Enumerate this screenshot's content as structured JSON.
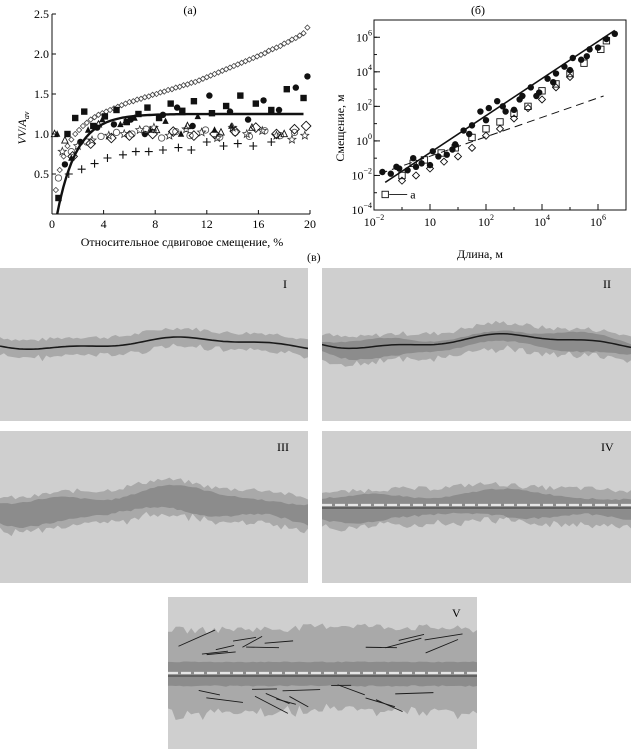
{
  "chart_data": [
    {
      "id": "a",
      "type": "scatter",
      "label": "(а)",
      "xlabel": "Относительное сдвиговое смещение, %",
      "ylabel_main": "VV",
      "ylabel_slash": "/",
      "ylabel_A": "A",
      "ylabel_sub": "av",
      "xlim": [
        0,
        20
      ],
      "ylim": [
        0,
        2.5
      ],
      "xticks": [
        "0",
        "4",
        "8",
        "12",
        "16",
        "20"
      ],
      "yticks": [
        "0.5",
        "1.0",
        "1.5",
        "2.0",
        "2.5"
      ],
      "fit_curve": {
        "name": "fit",
        "asymptote": 1.25,
        "rate": 0.65,
        "x_start": 0.4
      },
      "series": [
        {
          "name": "diamonds_open_small",
          "marker": "diamond-open-small",
          "x": [
            0.3,
            0.6,
            0.9,
            1.2,
            1.5,
            1.8,
            2.1,
            2.4,
            2.7,
            3.0,
            3.3,
            3.6,
            3.9,
            4.2,
            4.5,
            4.8,
            5.1,
            5.4,
            5.7,
            6.0,
            6.3,
            6.6,
            6.9,
            7.2,
            7.5,
            7.8,
            8.1,
            8.4,
            8.7,
            9.0,
            9.3,
            9.6,
            9.9,
            10.2,
            10.5,
            10.8,
            11.1,
            11.4,
            11.7,
            12.0,
            12.3,
            12.6,
            12.9,
            13.2,
            13.5,
            13.8,
            14.1,
            14.4,
            14.7,
            15.0,
            15.3,
            15.6,
            15.9,
            16.2,
            16.5,
            16.8,
            17.1,
            17.4,
            17.7,
            18.0,
            18.3,
            18.6,
            18.9,
            19.2,
            19.5,
            19.8
          ],
          "y": [
            0.3,
            0.55,
            0.72,
            0.85,
            0.93,
            1.0,
            1.05,
            1.1,
            1.14,
            1.18,
            1.21,
            1.24,
            1.26,
            1.28,
            1.3,
            1.32,
            1.34,
            1.36,
            1.38,
            1.4,
            1.41,
            1.43,
            1.44,
            1.46,
            1.47,
            1.49,
            1.5,
            1.52,
            1.53,
            1.55,
            1.56,
            1.58,
            1.59,
            1.61,
            1.62,
            1.64,
            1.65,
            1.67,
            1.69,
            1.71,
            1.73,
            1.75,
            1.77,
            1.79,
            1.81,
            1.83,
            1.85,
            1.87,
            1.89,
            1.91,
            1.93,
            1.95,
            1.97,
            1.99,
            2.01,
            2.04,
            2.06,
            2.08,
            2.1,
            2.13,
            2.15,
            2.18,
            2.2,
            2.23,
            2.26,
            2.33
          ]
        },
        {
          "name": "squares_filled",
          "marker": "square-filled",
          "x": [
            0.5,
            1.2,
            1.8,
            2.5,
            3.2,
            4.1,
            5.0,
            5.8,
            6.7,
            7.4,
            8.3,
            9.2,
            10.1,
            11.0,
            12.4,
            13.5,
            14.6,
            15.8,
            17.0,
            18.2,
            19.5
          ],
          "y": [
            0.2,
            1.0,
            1.2,
            1.28,
            1.1,
            1.22,
            1.3,
            1.15,
            1.25,
            1.33,
            1.2,
            1.38,
            1.29,
            1.41,
            1.26,
            1.35,
            1.48,
            1.38,
            1.3,
            1.56,
            1.45
          ]
        },
        {
          "name": "circles_filled",
          "marker": "circle-filled",
          "x": [
            1.0,
            2.2,
            3.5,
            4.8,
            6.1,
            7.2,
            8.6,
            9.7,
            10.9,
            12.2,
            13.8,
            15.2,
            16.4,
            17.6,
            18.9,
            19.8
          ],
          "y": [
            0.62,
            0.9,
            1.08,
            1.12,
            1.18,
            1.0,
            1.24,
            1.33,
            1.1,
            1.48,
            1.28,
            1.18,
            1.42,
            1.3,
            1.58,
            1.72
          ]
        },
        {
          "name": "triangles_filled",
          "marker": "triangle-filled",
          "x": [
            0.4,
            1.5,
            2.8,
            3.9,
            5.3,
            6.4,
            7.6,
            8.8,
            10.0,
            11.3,
            12.6,
            13.9
          ],
          "y": [
            1.0,
            0.7,
            1.05,
            1.18,
            1.12,
            1.2,
            1.05,
            1.16,
            1.0,
            1.22,
            1.05,
            1.1
          ]
        },
        {
          "name": "crosses",
          "marker": "plus",
          "x": [
            1.3,
            2.3,
            3.3,
            4.3,
            5.5,
            6.5,
            7.5,
            8.6,
            9.8,
            10.8,
            12.0,
            13.3,
            14.4,
            15.6,
            17.0
          ],
          "y": [
            0.5,
            0.56,
            0.63,
            0.7,
            0.74,
            0.78,
            0.78,
            0.8,
            0.83,
            0.8,
            0.9,
            0.85,
            0.88,
            0.85,
            0.9
          ]
        },
        {
          "name": "circles_open",
          "marker": "circle-open",
          "x": [
            0.5,
            1.5,
            2.7,
            3.8,
            5.0,
            6.2,
            7.3,
            8.5,
            9.6,
            10.7,
            11.9,
            13.0,
            14.2,
            15.3,
            16.5,
            17.7,
            18.8
          ],
          "y": [
            0.45,
            0.78,
            0.9,
            0.97,
            1.02,
            1.0,
            1.06,
            0.95,
            1.03,
            0.98,
            1.05,
            0.96,
            1.02,
            0.97,
            1.04,
            0.98,
            1.02
          ]
        },
        {
          "name": "stars_open",
          "marker": "star-open",
          "x": [
            0.8,
            2.0,
            3.1,
            4.4,
            5.6,
            6.8,
            7.9,
            9.1,
            10.4,
            11.6,
            12.8,
            14.0,
            15.1,
            16.3,
            17.4,
            18.6,
            19.6
          ],
          "y": [
            0.78,
            0.85,
            0.92,
            0.98,
            1.0,
            1.05,
            1.08,
            0.98,
            1.06,
            1.02,
            0.95,
            1.08,
            1.0,
            1.04,
            0.98,
            0.93,
            0.98
          ]
        },
        {
          "name": "diamonds_open_large",
          "marker": "diamond-open-large",
          "x": [
            1.6,
            3.0,
            4.6,
            6.0,
            7.8,
            9.4,
            11.0,
            12.6,
            14.2,
            15.8,
            17.4,
            18.8,
            19.7
          ],
          "y": [
            0.72,
            0.88,
            0.95,
            0.98,
            1.0,
            1.03,
            0.98,
            1.0,
            1.03,
            1.08,
            1.0,
            1.06,
            1.1
          ]
        },
        {
          "name": "triangles_open",
          "marker": "triangle-open",
          "x": [
            0.2,
            1.0,
            3.6,
            5.7,
            8.1,
            10.5,
            13.1,
            15.5,
            18.0
          ],
          "y": [
            1.0,
            0.92,
            1.12,
            1.15,
            1.05,
            1.1,
            1.02,
            1.08,
            1.0
          ]
        }
      ]
    },
    {
      "id": "b",
      "type": "scatter",
      "label": "(б)",
      "xlabel": "Длина, м",
      "ylabel": "Смещение, м",
      "xscale": "log",
      "yscale": "log",
      "xlim_exp": [
        -2,
        7
      ],
      "ylim_exp": [
        -4,
        7
      ],
      "xtick_base": "10",
      "xticks": [
        {
          "exp": -2,
          "sup": "−2"
        },
        {
          "exp": 0,
          "sup": ""
        },
        {
          "exp": 2,
          "sup": "2"
        },
        {
          "exp": 4,
          "sup": "4"
        },
        {
          "exp": 6,
          "sup": "6"
        }
      ],
      "yticks": [
        {
          "exp": -4,
          "sup": "−4"
        },
        {
          "exp": -2,
          "sup": "−2"
        },
        {
          "exp": 0,
          "sup": "0"
        },
        {
          "exp": 2,
          "sup": "2"
        },
        {
          "exp": 4,
          "sup": "4"
        },
        {
          "exp": 6,
          "sup": "6"
        }
      ],
      "annotation": "a",
      "fit_line": {
        "log_x": [
          -1.6,
          6.6
        ],
        "log_y": [
          -2.4,
          6.4
        ]
      },
      "dashed_line": {
        "log_x": [
          -1.8,
          6.2
        ],
        "log_y": [
          -1.9,
          2.6
        ]
      },
      "series": [
        {
          "name": "filled_circles",
          "marker": "circle-filled",
          "log_x": [
            -1.7,
            -1.4,
            -1.1,
            -0.8,
            -0.5,
            -0.3,
            0.0,
            0.3,
            0.6,
            0.9,
            1.2,
            1.5,
            1.8,
            2.1,
            2.4,
            2.7,
            3.0,
            3.3,
            3.6,
            3.9,
            4.2,
            4.5,
            4.8,
            5.1,
            5.4,
            5.7,
            6.0,
            6.3,
            6.6,
            -1.2,
            -0.6,
            0.1,
            0.8,
            1.4,
            2.0,
            2.6,
            3.2,
            3.8,
            4.4,
            5.0,
            5.6
          ],
          "log_y": [
            -1.8,
            -1.9,
            -1.6,
            -1.7,
            -1.5,
            -1.3,
            -1.4,
            -0.9,
            -0.8,
            -0.2,
            0.6,
            0.9,
            1.7,
            1.9,
            2.3,
            1.7,
            1.8,
            2.6,
            3.1,
            2.8,
            3.6,
            3.9,
            4.3,
            4.8,
            4.7,
            5.3,
            5.4,
            5.9,
            6.2,
            -1.5,
            -1.0,
            -0.6,
            -0.5,
            0.4,
            1.2,
            2.0,
            2.4,
            2.6,
            3.4,
            4.1,
            4.9
          ]
        },
        {
          "name": "open_squares",
          "marker": "square-open",
          "log_x": [
            -1.6,
            -1.0,
            -0.6,
            -0.2,
            0.4,
            0.9,
            1.5,
            2.0,
            2.5,
            3.0,
            3.5,
            4.0,
            4.5,
            5.0,
            5.5,
            6.1,
            6.3
          ],
          "log_y": [
            -3.1,
            -2.0,
            -1.3,
            -1.1,
            -0.7,
            -0.4,
            0.2,
            0.7,
            1.1,
            1.6,
            2.0,
            2.9,
            3.3,
            3.9,
            4.5,
            5.3,
            5.8
          ]
        },
        {
          "name": "open_diamonds",
          "marker": "diamond-open",
          "log_x": [
            -1.0,
            -0.5,
            0.0,
            0.5,
            1.0,
            1.5,
            2.0,
            2.5,
            3.0,
            3.5,
            4.0,
            4.5,
            5.0
          ],
          "log_y": [
            -2.3,
            -2.0,
            -1.6,
            -1.2,
            -0.9,
            -0.4,
            0.3,
            0.7,
            1.3,
            1.9,
            2.4,
            3.1,
            3.7
          ]
        }
      ]
    }
  ],
  "panel_v": {
    "label": "(в)",
    "sub": [
      {
        "numeral": "I"
      },
      {
        "numeral": "II"
      },
      {
        "numeral": "III"
      },
      {
        "numeral": "IV"
      },
      {
        "numeral": "V"
      }
    ]
  },
  "colors": {
    "panel_bg": "#cfcfcf",
    "gouge": "#8c8c8c",
    "breccia": "#a9a9a9",
    "line": "#1a1a1a"
  }
}
